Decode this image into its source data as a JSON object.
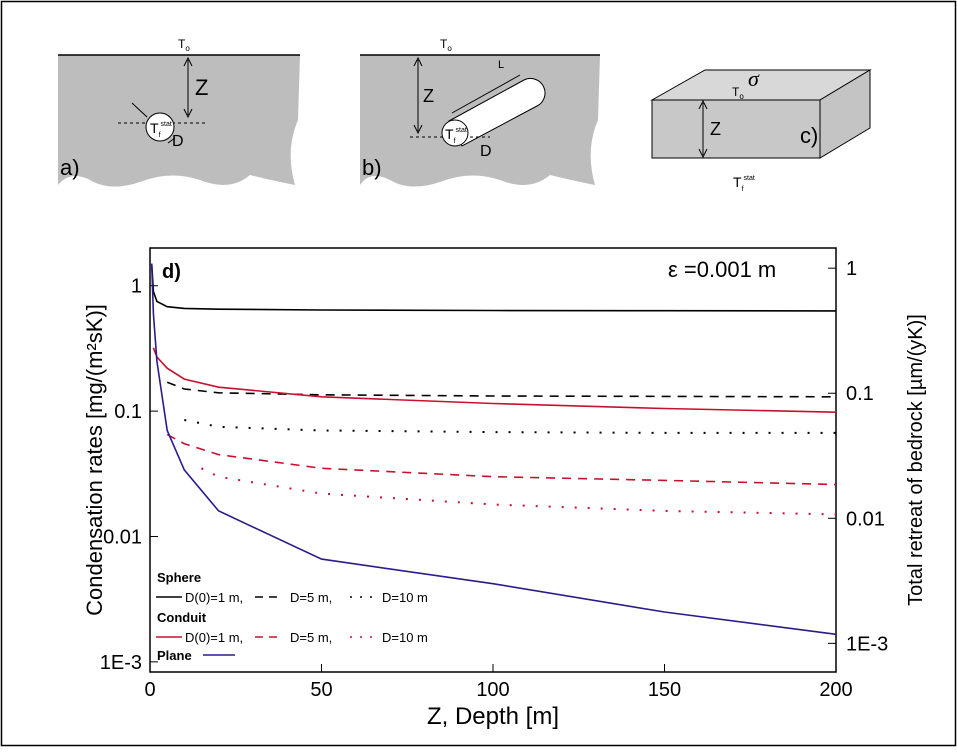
{
  "diagrams": {
    "panel_a": {
      "surface_temp": {
        "main": "T",
        "sub": "o"
      },
      "depth": "Z",
      "diameter": "D",
      "cavity_temp": {
        "main": "T",
        "sub": "f",
        "sup": "stat"
      },
      "label": "a)"
    },
    "panel_b": {
      "surface_temp": {
        "main": "T",
        "sub": "o"
      },
      "depth": "Z",
      "length": "L",
      "diameter": "D",
      "cavity_temp": {
        "main": "T",
        "sub": "f",
        "sup": "stat"
      },
      "label": "b)"
    },
    "panel_c": {
      "sigma": "σ",
      "surface_temp": {
        "main": "T",
        "sub": "o"
      },
      "depth": "Z",
      "cavity_temp": {
        "main": "T",
        "sub": "f",
        "sup": "stat"
      },
      "label": "c)"
    }
  },
  "chart_data": {
    "type": "line",
    "panel_label": "d)",
    "annotation": "ε =0.001 m",
    "x_label": "Z, Depth [m]",
    "y_label": "Condensation rates [mg/(m²sK)]",
    "y2_label": "Total retreat of bedrock [µm/(yK)]",
    "xlim": [
      0,
      200
    ],
    "xticks": [
      0,
      50,
      100,
      150,
      200
    ],
    "ylim": [
      0.00083,
      2
    ],
    "yticks": [
      1,
      0.1,
      0.01,
      {
        "value": 0.001,
        "label": "1E-3"
      }
    ],
    "y_log": true,
    "y2lim": [
      0.00059,
      1.45
    ],
    "y2ticks": [
      1,
      0.1,
      0.01,
      {
        "value": 0.001,
        "label": "1E-3"
      }
    ],
    "y2_log": true,
    "series_groups": [
      {
        "name": "Sphere",
        "series": [
          {
            "name": "D(0)=1 m,",
            "color": "#000000",
            "dash": "solid",
            "x": [
              0.5,
              1,
              2,
              5,
              10,
              20,
              50,
              100,
              150,
              200
            ],
            "values": [
              1.5,
              0.9,
              0.75,
              0.68,
              0.66,
              0.65,
              0.64,
              0.635,
              0.632,
              0.63
            ]
          },
          {
            "name": "D=5 m,",
            "color": "#000000",
            "dash": "dashed",
            "x": [
              5,
              10,
              20,
              50,
              100,
              150,
              200
            ],
            "values": [
              0.17,
              0.15,
              0.14,
              0.135,
              0.132,
              0.131,
              0.13
            ]
          },
          {
            "name": "D=10 m",
            "color": "#000000",
            "dash": "dotted",
            "x": [
              10,
              20,
              50,
              100,
              150,
              200
            ],
            "values": [
              0.085,
              0.075,
              0.07,
              0.068,
              0.067,
              0.067
            ]
          }
        ]
      },
      {
        "name": "Conduit",
        "series": [
          {
            "name": "D(0)=1 m,",
            "color": "#c8102e",
            "dash": "solid",
            "x": [
              1,
              2,
              5,
              10,
              20,
              50,
              100,
              150,
              200
            ],
            "values": [
              0.32,
              0.27,
              0.22,
              0.18,
              0.155,
              0.13,
              0.115,
              0.105,
              0.098
            ]
          },
          {
            "name": "D=5 m,",
            "color": "#c8102e",
            "dash": "dashed",
            "x": [
              5,
              10,
              20,
              50,
              100,
              150,
              200
            ],
            "values": [
              0.065,
              0.055,
              0.045,
              0.035,
              0.03,
              0.028,
              0.026
            ]
          },
          {
            "name": "D=10 m",
            "color": "#c8102e",
            "dash": "dotted",
            "x": [
              15,
              20,
              50,
              100,
              150,
              200
            ],
            "values": [
              0.035,
              0.03,
              0.022,
              0.018,
              0.016,
              0.015
            ]
          }
        ]
      },
      {
        "name": "Plane",
        "series": [
          {
            "color": "#2e1a8c",
            "dash": "solid",
            "x": [
              0.5,
              1,
              2,
              5,
              10,
              20,
              50,
              100,
              150,
              200
            ],
            "values": [
              1.5,
              0.6,
              0.25,
              0.07,
              0.034,
              0.016,
              0.0066,
              0.0042,
              0.0025,
              0.00166
            ]
          }
        ]
      }
    ]
  }
}
